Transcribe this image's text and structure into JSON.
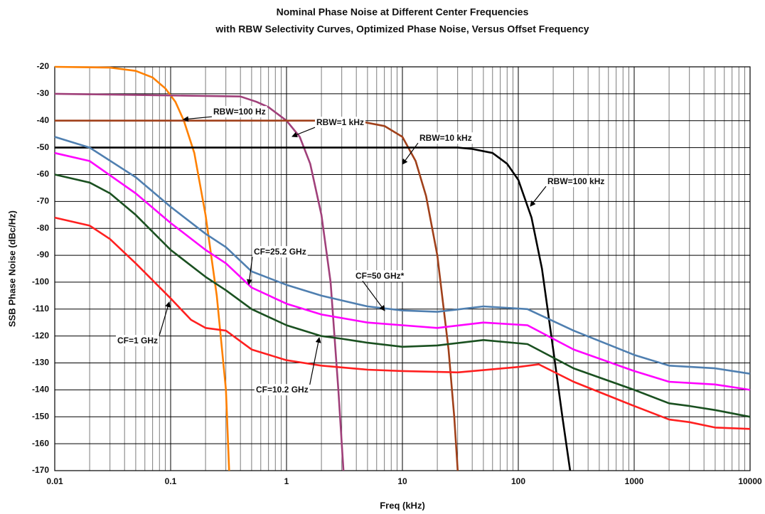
{
  "chart_data": {
    "type": "line",
    "title": "Nominal Phase Noise at Different Center Frequencies",
    "subtitle": "with RBW Selectivity Curves, Optimized Phase Noise, Versus Offset Frequency",
    "x_label": "Freq (kHz)",
    "y_label": "SSB Phase Noise (dBc/Hz)",
    "xscale": "log",
    "grid": true,
    "xlim": [
      0.01,
      10000
    ],
    "xticks": [
      0.01,
      0.1,
      1,
      10,
      100,
      1000,
      10000
    ],
    "ylim": [
      -170,
      -20
    ],
    "yticks": [
      -170,
      -160,
      -150,
      -140,
      -130,
      -120,
      -110,
      -100,
      -90,
      -80,
      -70,
      -60,
      -50,
      -40,
      -30,
      -20
    ],
    "series": [
      {
        "name": "RBW=100 Hz",
        "color": "#ff8000",
        "x": [
          0.01,
          0.03,
          0.05,
          0.07,
          0.09,
          0.11,
          0.13,
          0.16,
          0.2,
          0.25,
          0.3,
          0.32
        ],
        "values": [
          -20,
          -20.3,
          -21.5,
          -24,
          -28,
          -33,
          -40,
          -52,
          -75,
          -105,
          -140,
          -170
        ]
      },
      {
        "name": "RBW=1 kHz",
        "color": "#a0407a",
        "x": [
          0.01,
          0.4,
          0.55,
          0.7,
          1,
          1.3,
          1.6,
          2,
          2.4,
          2.8,
          3.1
        ],
        "values": [
          -30,
          -31,
          -33,
          -35,
          -40,
          -46,
          -56,
          -75,
          -100,
          -140,
          -170
        ]
      },
      {
        "name": "RBW=10 kHz",
        "color": "#a0401a",
        "x": [
          0.01,
          4,
          7,
          10,
          13,
          16,
          20,
          25,
          28,
          30
        ],
        "values": [
          -40,
          -40,
          -42,
          -46,
          -55,
          -68,
          -90,
          -125,
          -150,
          -170
        ]
      },
      {
        "name": "RBW=100 kHz",
        "color": "#000000",
        "x": [
          0.01,
          30,
          40,
          60,
          80,
          100,
          130,
          160,
          200,
          240,
          280
        ],
        "values": [
          -50,
          -50,
          -50.5,
          -52,
          -56,
          -62,
          -76,
          -95,
          -125,
          -150,
          -170
        ]
      },
      {
        "name": "CF=25.2 GHz",
        "color": "#ff00ff",
        "x": [
          0.01,
          0.02,
          0.05,
          0.1,
          0.2,
          0.3,
          0.5,
          1,
          2,
          5,
          10,
          20,
          50,
          120,
          300,
          1000,
          2000,
          5000,
          10000
        ],
        "values": [
          -52,
          -55,
          -67,
          -78,
          -88,
          -93,
          -102,
          -108,
          -112,
          -115,
          -116,
          -117,
          -115,
          -116,
          -125,
          -133,
          -137,
          -138,
          -140
        ]
      },
      {
        "name": "CF=50 GHz*",
        "color": "#4f7fb0",
        "x": [
          0.01,
          0.02,
          0.05,
          0.1,
          0.2,
          0.3,
          0.5,
          1,
          2,
          5,
          10,
          20,
          50,
          120,
          300,
          1000,
          2000,
          5000,
          10000
        ],
        "values": [
          -46,
          -50,
          -61,
          -72,
          -82,
          -87,
          -96,
          -101,
          -105,
          -109,
          -110.5,
          -111,
          -109,
          -110,
          -118,
          -127,
          -131,
          -132,
          -134
        ]
      },
      {
        "name": "CF=1 GHz",
        "color": "#ff2020",
        "x": [
          0.01,
          0.02,
          0.03,
          0.05,
          0.1,
          0.15,
          0.2,
          0.3,
          0.5,
          1,
          2,
          5,
          10,
          30,
          100,
          150,
          300,
          1000,
          2000,
          3000,
          5000,
          10000
        ],
        "values": [
          -76,
          -79,
          -84,
          -93,
          -106,
          -114,
          -117,
          -118,
          -125,
          -129,
          -131,
          -132.5,
          -133,
          -133.5,
          -131.5,
          -130.5,
          -137,
          -146,
          -151,
          -152,
          -154,
          -154.5
        ]
      },
      {
        "name": "CF=10.2 GHz",
        "color": "#1a5020",
        "x": [
          0.01,
          0.02,
          0.03,
          0.05,
          0.1,
          0.2,
          0.3,
          0.5,
          1,
          2,
          3,
          5,
          10,
          20,
          50,
          120,
          300,
          1000,
          2000,
          3000,
          5000,
          10000
        ],
        "values": [
          -60,
          -63,
          -67,
          -75,
          -88,
          -98,
          -103,
          -110,
          -116,
          -120,
          -121,
          -122.5,
          -124,
          -123.5,
          -121.5,
          -123,
          -132,
          -140,
          -145,
          -146,
          -147.5,
          -150
        ]
      }
    ]
  }
}
